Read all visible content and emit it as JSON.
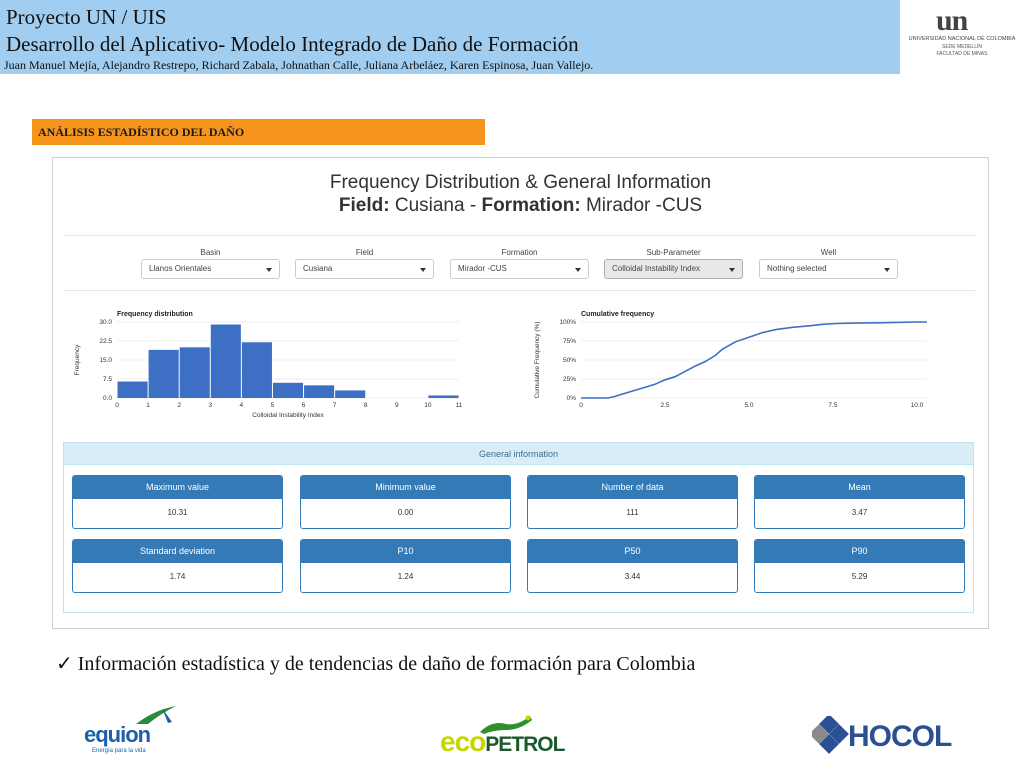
{
  "header": {
    "title_line1": "Proyecto UN / UIS",
    "title_line2": "Desarrollo  del Aplicativo- Modelo Integrado de Daño de Formación",
    "authors": "Juan Manuel Mejía,  Alejandro Restrepo, Richard Zabala, Johnathan Calle, Juliana Arbeláez, Karen Espinosa, Juan Vallejo.",
    "logo": {
      "mark": "un",
      "line1": "UNIVERSIDAD NACIONAL DE COLOMBIA",
      "line2": "SEDE MEDELLÍN",
      "line3": "FACULTAD DE MINAS"
    }
  },
  "section_label": "ANÁLISIS ESTADÍSTICO DEL DAÑO",
  "app": {
    "title": "Frequency Distribution & General Information",
    "subtitle": {
      "field_label": "Field:",
      "field_value": "Cusiana",
      "sep": "-",
      "formation_label": "Formation:",
      "formation_value": "Mirador -CUS"
    },
    "filters": [
      {
        "label": "Basin",
        "value": "Llanos Orientales"
      },
      {
        "label": "Field",
        "value": "Cusiana"
      },
      {
        "label": "Formation",
        "value": "Mirador -CUS"
      },
      {
        "label": "Sub-Parameter",
        "value": "Colloidal Instability Index"
      },
      {
        "label": "Well",
        "value": "Nothing selected"
      }
    ],
    "general_info": {
      "heading": "General information",
      "cards": [
        {
          "label": "Maximum value",
          "value": "10.31"
        },
        {
          "label": "Minimum value",
          "value": "0.00"
        },
        {
          "label": "Number of data",
          "value": "111"
        },
        {
          "label": "Mean",
          "value": "3.47"
        },
        {
          "label": "Standard deviation",
          "value": "1.74"
        },
        {
          "label": "P10",
          "value": "1.24"
        },
        {
          "label": "P50",
          "value": "3.44"
        },
        {
          "label": "P90",
          "value": "5.29"
        }
      ]
    }
  },
  "colors": {
    "accent": "#337ab7",
    "header_bg": "#a0cdf0",
    "section_bg": "#f7941d",
    "info_bg": "#d9edf7"
  },
  "note": {
    "check": "✓",
    "text": "Información estadística y de tendencias de daño de formación para Colombia"
  },
  "logos": {
    "equion": {
      "name": "equion",
      "tagline": "Energía para la vida"
    },
    "ecopetrol": {
      "name_a": "eco",
      "name_b": "PETROL"
    },
    "hocol": {
      "name": "HOCOL"
    }
  },
  "chart_data": [
    {
      "type": "bar",
      "title": "Frequency distribution",
      "xlabel": "Colloidal Instability Index",
      "ylabel": "Frequency",
      "bin_edges": [
        0,
        1,
        2,
        3,
        4,
        5,
        6,
        7,
        8,
        9,
        10,
        11
      ],
      "values": [
        6.5,
        19,
        20,
        29,
        22,
        6,
        5,
        3,
        0,
        0,
        1
      ],
      "xlim": [
        0,
        11
      ],
      "ylim": [
        0,
        30
      ],
      "yticks": [
        "0.0",
        "7.5",
        "15.0",
        "22.5",
        "30.0"
      ],
      "xticks": [
        "0",
        "1",
        "2",
        "3",
        "4",
        "5",
        "6",
        "7",
        "8",
        "9",
        "10",
        "11"
      ]
    },
    {
      "type": "line",
      "title": "Cumulative frequency",
      "xlabel": "",
      "ylabel": "Cumulative Frequency (%)",
      "x": [
        0,
        0.8,
        1.0,
        1.3,
        1.6,
        1.9,
        2.2,
        2.5,
        2.8,
        3.1,
        3.4,
        3.7,
        4.0,
        4.2,
        4.6,
        5.0,
        5.4,
        5.8,
        6.3,
        6.8,
        7.2,
        7.6,
        8.2,
        8.8,
        9.4,
        10.0,
        10.3
      ],
      "y": [
        0,
        0,
        2,
        6,
        10,
        14,
        18,
        24,
        28,
        35,
        42,
        48,
        56,
        64,
        74,
        80,
        86,
        90,
        93,
        95,
        97,
        98,
        98.5,
        99,
        99.5,
        100,
        100
      ],
      "xlim": [
        0,
        10.3
      ],
      "ylim": [
        0,
        100
      ],
      "yticks": [
        "0%",
        "25%",
        "50%",
        "75%",
        "100%"
      ],
      "xticks": [
        "0",
        "2.5",
        "5.0",
        "7.5",
        "10.0"
      ]
    }
  ]
}
